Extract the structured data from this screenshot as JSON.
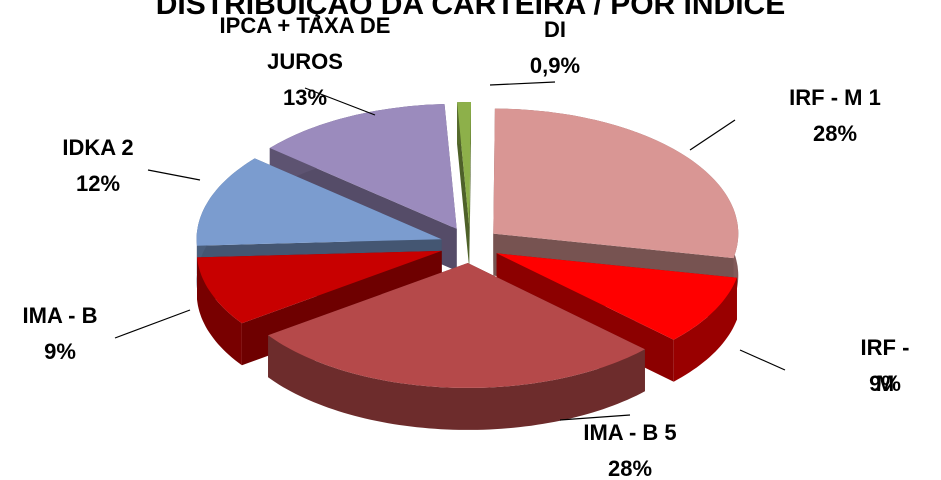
{
  "chart_data": {
    "type": "pie",
    "title": "DISTRIBUIÇÃO DA CARTEIRA / POR ÍNDICE",
    "categories": [
      "DI",
      "IRF - M 1",
      "IRF - M",
      "IMA - B 5",
      "IMA - B",
      "IDKA 2",
      "IPCA + TAXA DE JUROS"
    ],
    "values": [
      0.9,
      28,
      9,
      28,
      9,
      12,
      13
    ],
    "value_labels": [
      "0,9%",
      "28%",
      "9%",
      "28%",
      "9%",
      "12%",
      "13%"
    ],
    "colors": [
      "#8db04a",
      "#d99694",
      "#ff0000",
      "#b5494a",
      "#c80000",
      "#7b9ccf",
      "#9b8bbd"
    ]
  }
}
